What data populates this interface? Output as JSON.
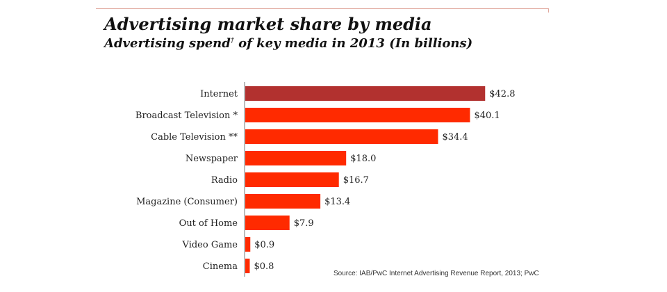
{
  "chart_data": {
    "type": "bar",
    "orientation": "horizontal",
    "title": "Advertising market share by media",
    "subtitle_main": "Advertising spend",
    "subtitle_mark": "†",
    "subtitle_rest": " of key media in 2013 (In billions)",
    "categories": [
      "Internet",
      "Broadcast Television *",
      "Cable Television **",
      "Newspaper",
      "Radio",
      "Magazine (Consumer)",
      "Out of Home",
      "Video Game",
      "Cinema"
    ],
    "values": [
      42.8,
      40.1,
      34.4,
      18.0,
      16.7,
      13.4,
      7.9,
      0.9,
      0.8
    ],
    "value_labels": [
      "$42.8",
      "$40.1",
      "$34.4",
      "$18.0",
      "$16.7",
      "$13.4",
      "$7.9",
      "$0.9",
      "$0.8"
    ],
    "xlim": [
      0,
      45
    ],
    "xlabel": "",
    "ylabel": "",
    "grid": false,
    "highlight_index": 0,
    "colors": {
      "highlight": "#b2312f",
      "bar": "#ff2a00",
      "axis": "#777777"
    },
    "source": "Source: IAB/PwC Internet Advertising Revenue Report, 2013; PwC"
  }
}
